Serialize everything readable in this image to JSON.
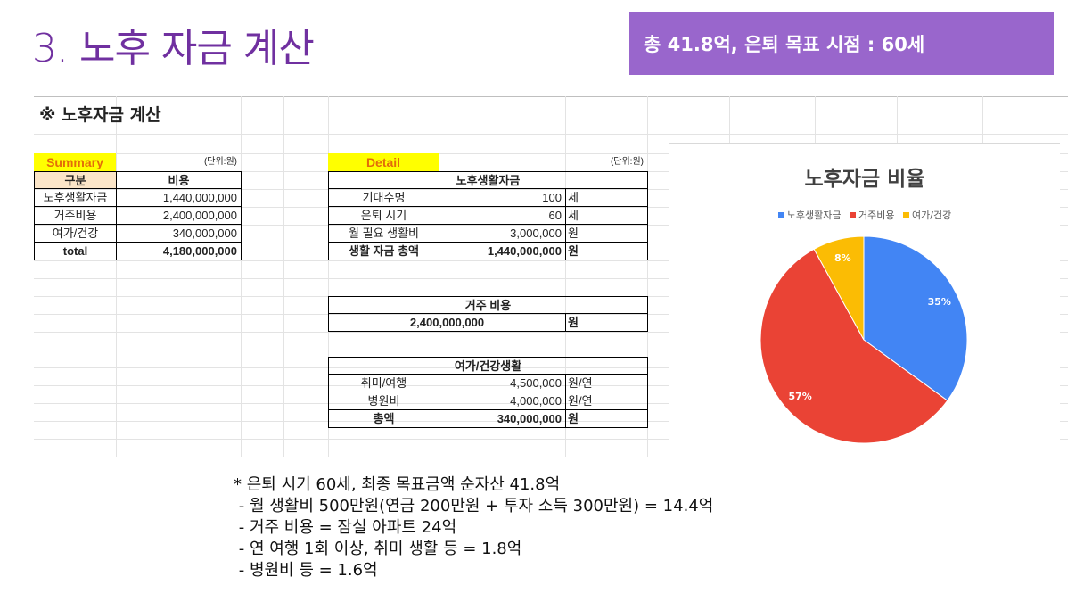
{
  "slide": {
    "title": "3. 노후 자금 계산",
    "badge": "총 41.8억, 은퇴 목표 시점  : 60세"
  },
  "sheet": {
    "heading": "※ 노후자금 계산",
    "summary": {
      "tag": "Summary",
      "unit": "(단위:원)",
      "col_category": "구분",
      "col_cost": "비용",
      "rows": [
        {
          "label": "노후생활자금",
          "value": "1,440,000,000"
        },
        {
          "label": "거주비용",
          "value": "2,400,000,000"
        },
        {
          "label": "여가/건강",
          "value": "340,000,000"
        }
      ],
      "total_label": "total",
      "total_value": "4,180,000,000"
    },
    "detail": {
      "tag": "Detail",
      "unit": "(단위:원)",
      "living": {
        "title": "노후생활자금",
        "rows": [
          {
            "label": "기대수명",
            "value": "100",
            "unit": "세"
          },
          {
            "label": "은퇴 시기",
            "value": "60",
            "unit": "세"
          },
          {
            "label": "월 필요 생활비",
            "value": "3,000,000",
            "unit": "원"
          },
          {
            "label": "생활 자금 총액",
            "value": "1,440,000,000",
            "unit": "원"
          }
        ]
      },
      "housing": {
        "title": "거주 비용",
        "value": "2,400,000,000",
        "unit": "원"
      },
      "leisure": {
        "title": "여가/건강생활",
        "rows": [
          {
            "label": "취미/여행",
            "value": "4,500,000",
            "unit": "원/연"
          },
          {
            "label": "병원비",
            "value": "4,000,000",
            "unit": "원/연"
          },
          {
            "label": "총액",
            "value": "340,000,000",
            "unit": "원"
          }
        ]
      }
    }
  },
  "chart_data": {
    "type": "pie",
    "title": "노후자금 비율",
    "legend_position": "top",
    "categories": [
      "노후생활자금",
      "거주비용",
      "여가/건강"
    ],
    "values": [
      35,
      57,
      8
    ],
    "labels": [
      "35%",
      "57%",
      "8%"
    ],
    "colors": [
      "#4285f4",
      "#ea4335",
      "#fbbc04"
    ]
  },
  "notes": [
    "* 은퇴 시기 60세, 최종 목표금액 순자산 41.8억",
    " - 월 생활비 500만원(연금 200만원 + 투자 소득 300만원) = 14.4억",
    " - 거주 비용 = 잠실 아파트 24억",
    " - 연 여행 1회 이상, 취미 생활 등 = 1.8억",
    " - 병원비 등 = 1.6억"
  ]
}
